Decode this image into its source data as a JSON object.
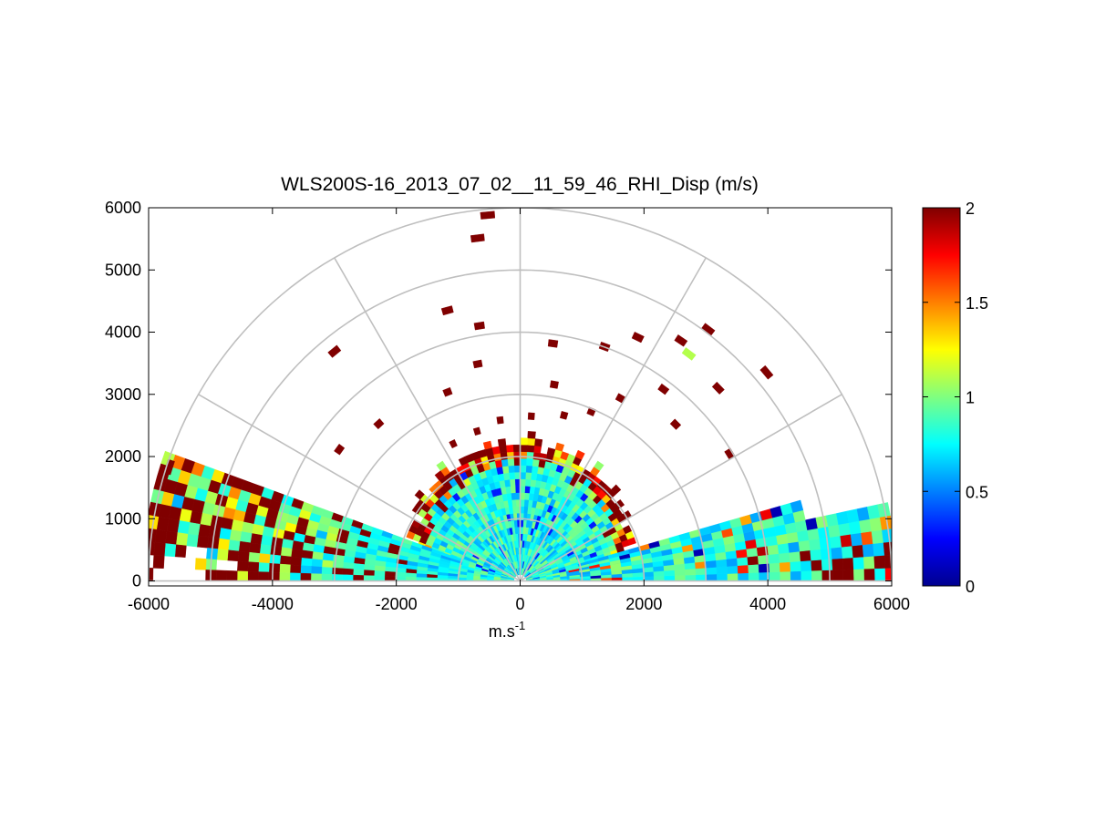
{
  "chart_data": {
    "type": "heatmap",
    "title": "WLS200S-16_2013_07_02__11_59_46_RHI_Disp (m/s)",
    "xlabel": "m.s",
    "xlabel_superscript": "-1",
    "ylabel": "",
    "xlim": [
      -6000,
      6000
    ],
    "ylim": [
      0,
      6000
    ],
    "xticks": [
      "-6000",
      "-4000",
      "-2000",
      "0",
      "2000",
      "4000",
      "6000"
    ],
    "yticks": [
      "0",
      "1000",
      "2000",
      "3000",
      "4000",
      "5000",
      "6000"
    ],
    "grid": true,
    "polar_rings_m": [
      1000,
      2000,
      3000,
      4000,
      5000,
      6000
    ],
    "polar_spokes_deg": [
      0,
      30,
      60,
      90,
      120,
      150,
      180
    ],
    "colorbar": {
      "colormap": "jet",
      "range": [
        0,
        2
      ],
      "ticks": [
        "0",
        "0.5",
        "1",
        "1.5",
        "2"
      ]
    },
    "scan": {
      "azimuth_left_deg": [
        160,
        180
      ],
      "azimuth_right_deg": [
        0,
        16
      ],
      "dense_region_radius_m": [
        0,
        2200
      ],
      "near_ground_value_ms": 0.8
    }
  },
  "colors": {
    "axes": "#000000",
    "grid": "#bfbfbf",
    "background": "#ffffff"
  }
}
